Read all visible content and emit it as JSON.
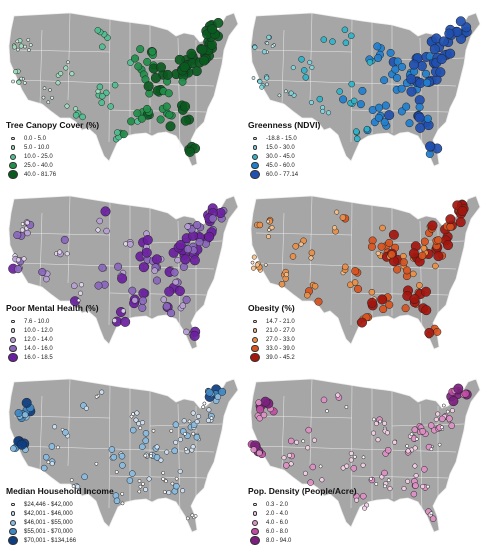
{
  "panels": [
    {
      "title": "Tree Canopy Cover (%)",
      "colors": [
        "#d9f2e6",
        "#9fe0c0",
        "#4fbf90",
        "#1f8f4a",
        "#0a5a20"
      ],
      "classes": [
        "0.0 - 5.0",
        "5.0 - 10.0",
        "10.0 - 25.0",
        "25.0 - 40.0",
        "40.0 - 81.76"
      ]
    },
    {
      "title": "Greenness (NDVI)",
      "colors": [
        "#c8f0f0",
        "#7fd6df",
        "#2fb3c9",
        "#1f7fcf",
        "#1f4fb0"
      ],
      "classes": [
        "-18.8 - 15.0",
        "15.0 - 30.0",
        "30.0 - 45.0",
        "45.0 - 60.0",
        "60.0 - 77.14"
      ]
    },
    {
      "title": "Poor Mental Health (%)",
      "colors": [
        "#ffffff",
        "#e4d7ef",
        "#b9a0d6",
        "#8a66bd",
        "#6a1fa0"
      ],
      "classes": [
        "7.6 - 10.0",
        "10.0 - 12.0",
        "12.0 - 14.0",
        "14.0 - 16.0",
        "16.0 - 18.5"
      ]
    },
    {
      "title": "Obesity (%)",
      "colors": [
        "#fde6cf",
        "#f9c08a",
        "#ee8f45",
        "#d8541f",
        "#a3160e"
      ],
      "classes": [
        "14.7 - 21.0",
        "21.0 - 27.0",
        "27.0 - 33.0",
        "33.0 - 39.0",
        "39.0 - 45.2"
      ]
    },
    {
      "title": "Median Household Income",
      "colors": [
        "#ffffff",
        "#cfe3f5",
        "#88bce2",
        "#3f88c4",
        "#0e3d80"
      ],
      "classes": [
        "$24,446 - $42,000",
        "$42,001 - $46,000",
        "$46,001 - $55,000",
        "$55,001 - $70,000",
        "$70,001 - $134,166"
      ]
    },
    {
      "title": "Pop. Density (People/Acre)",
      "colors": [
        "#ffffff",
        "#f5d0e8",
        "#e08fc6",
        "#c04ca3",
        "#7a1f7d"
      ],
      "classes": [
        "0.3 - 2.0",
        "2.0 - 4.0",
        "4.0 - 6.0",
        "6.0 - 8.0",
        "8.0 - 94.0"
      ]
    }
  ],
  "map_colors": {
    "land": "#a6a6a6",
    "border": "#ececec"
  }
}
